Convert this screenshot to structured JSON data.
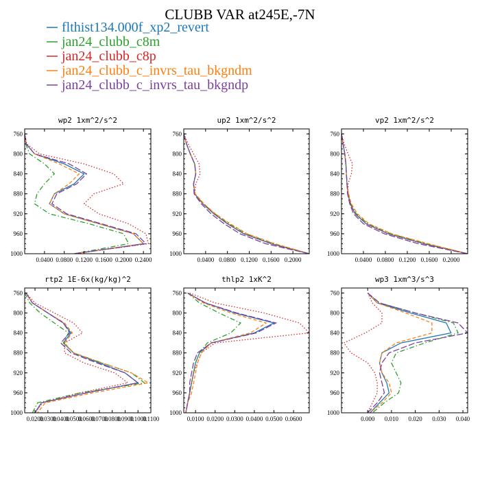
{
  "title": "CLUBB VAR at245E,-7N",
  "colors": {
    "flthist134.000f_xp2_revert": "#1f77b4",
    "jan24_clubb_c8m": "#2ca02c",
    "jan24_clubb_c8p": "#d62728",
    "jan24_clubb_c_invrs_tau_bkgndm": "#ff7f0e",
    "jan24_clubb_c_invrs_tau_bkgndp": "#7b3fa0"
  },
  "legend": [
    {
      "name": "flthist134.000f_xp2_revert",
      "color": "#1f77b4",
      "dash": "solid"
    },
    {
      "name": "jan24_clubb_c8m",
      "color": "#2ca02c",
      "dash": "dashdot"
    },
    {
      "name": "jan24_clubb_c8p",
      "color": "#d62728",
      "dash": "dotted"
    },
    {
      "name": "jan24_clubb_c_invrs_tau_bkgndm",
      "color": "#ff7f0e",
      "dash": "dashed"
    },
    {
      "name": "jan24_clubb_c_invrs_tau_bkgndp",
      "color": "#7b3fa0",
      "dash": "longdash"
    }
  ],
  "chart_data": [
    {
      "type": "line",
      "title": "wp2  1xm^2/s^2",
      "xlim": [
        0.0,
        0.255
      ],
      "ylim": [
        1000,
        750
      ],
      "xticks": [
        0.04,
        0.08,
        0.12,
        0.16,
        0.2,
        0.24
      ],
      "xtick_labels": [
        "0.0400",
        "0.0800",
        "0.1200",
        "0.1600",
        "0.2000",
        "0.2400"
      ],
      "yticks": [
        760,
        800,
        840,
        880,
        920,
        960,
        1000
      ],
      "y": [
        760,
        780,
        800,
        820,
        840,
        860,
        880,
        900,
        920,
        940,
        960,
        980,
        1000
      ],
      "series": [
        {
          "name": "flthist134.000f_xp2_revert",
          "x": [
            0.0,
            0.003,
            0.02,
            0.08,
            0.12,
            0.1,
            0.06,
            0.05,
            0.08,
            0.15,
            0.22,
            0.24,
            0.1
          ]
        },
        {
          "name": "jan24_clubb_c8m",
          "x": [
            0.0,
            0.002,
            0.01,
            0.04,
            0.06,
            0.04,
            0.025,
            0.02,
            0.05,
            0.13,
            0.2,
            0.21,
            0.1
          ]
        },
        {
          "name": "jan24_clubb_c8p",
          "x": [
            0.0,
            0.004,
            0.03,
            0.12,
            0.18,
            0.2,
            0.14,
            0.12,
            0.15,
            0.21,
            0.245,
            0.25,
            0.1
          ]
        },
        {
          "name": "jan24_clubb_c_invrs_tau_bkgndm",
          "x": [
            0.0,
            0.003,
            0.02,
            0.07,
            0.11,
            0.09,
            0.06,
            0.05,
            0.08,
            0.15,
            0.22,
            0.24,
            0.1
          ]
        },
        {
          "name": "jan24_clubb_c_invrs_tau_bkgndp",
          "x": [
            0.0,
            0.003,
            0.02,
            0.09,
            0.125,
            0.105,
            0.065,
            0.055,
            0.085,
            0.155,
            0.225,
            0.245,
            0.1
          ]
        }
      ]
    },
    {
      "type": "line",
      "title": "up2  1xm^2/s^2",
      "xlim": [
        0.0,
        0.23
      ],
      "ylim": [
        1000,
        750
      ],
      "xticks": [
        0.04,
        0.08,
        0.12,
        0.16,
        0.2
      ],
      "xtick_labels": [
        "0.0400",
        "0.0800",
        "0.1200",
        "0.1600",
        "0.2000"
      ],
      "yticks": [
        760,
        800,
        840,
        880,
        920,
        960,
        1000
      ],
      "y": [
        760,
        780,
        800,
        820,
        840,
        860,
        880,
        900,
        920,
        940,
        960,
        980,
        1000
      ],
      "series": [
        {
          "name": "flthist134.000f_xp2_revert",
          "x": [
            0.0,
            0.005,
            0.012,
            0.02,
            0.022,
            0.018,
            0.02,
            0.035,
            0.055,
            0.08,
            0.11,
            0.16,
            0.23
          ]
        },
        {
          "name": "jan24_clubb_c8m",
          "x": [
            0.0,
            0.005,
            0.012,
            0.02,
            0.022,
            0.018,
            0.02,
            0.036,
            0.057,
            0.083,
            0.114,
            0.165,
            0.23
          ]
        },
        {
          "name": "jan24_clubb_c8p",
          "x": [
            0.0,
            0.008,
            0.018,
            0.028,
            0.03,
            0.022,
            0.02,
            0.035,
            0.055,
            0.08,
            0.11,
            0.16,
            0.23
          ]
        },
        {
          "name": "jan24_clubb_c_invrs_tau_bkgndm",
          "x": [
            0.0,
            0.005,
            0.012,
            0.02,
            0.022,
            0.018,
            0.021,
            0.037,
            0.058,
            0.085,
            0.116,
            0.167,
            0.23
          ]
        },
        {
          "name": "jan24_clubb_c_invrs_tau_bkgndp",
          "x": [
            0.0,
            0.005,
            0.012,
            0.02,
            0.022,
            0.018,
            0.019,
            0.032,
            0.05,
            0.074,
            0.103,
            0.15,
            0.23
          ]
        }
      ]
    },
    {
      "type": "line",
      "title": "vp2  1xm^2/s^2",
      "xlim": [
        0.0,
        0.23
      ],
      "ylim": [
        1000,
        750
      ],
      "xticks": [
        0.04,
        0.08,
        0.12,
        0.16,
        0.2
      ],
      "xtick_labels": [
        "0.0400",
        "0.0800",
        "0.1200",
        "0.1600",
        "0.2000"
      ],
      "yticks": [
        760,
        800,
        840,
        880,
        920,
        960,
        1000
      ],
      "y": [
        760,
        780,
        800,
        820,
        840,
        860,
        880,
        900,
        920,
        940,
        960,
        980,
        1000
      ],
      "series": [
        {
          "name": "flthist134.000f_xp2_revert",
          "x": [
            0.0,
            0.003,
            0.006,
            0.008,
            0.009,
            0.01,
            0.012,
            0.016,
            0.025,
            0.045,
            0.085,
            0.15,
            0.23
          ]
        },
        {
          "name": "jan24_clubb_c8m",
          "x": [
            0.0,
            0.003,
            0.006,
            0.008,
            0.009,
            0.01,
            0.012,
            0.017,
            0.027,
            0.048,
            0.09,
            0.155,
            0.23
          ]
        },
        {
          "name": "jan24_clubb_c8p",
          "x": [
            0.0,
            0.005,
            0.012,
            0.02,
            0.018,
            0.012,
            0.012,
            0.016,
            0.025,
            0.045,
            0.085,
            0.15,
            0.23
          ]
        },
        {
          "name": "jan24_clubb_c_invrs_tau_bkgndm",
          "x": [
            0.0,
            0.003,
            0.006,
            0.008,
            0.009,
            0.01,
            0.013,
            0.018,
            0.029,
            0.05,
            0.092,
            0.158,
            0.23
          ]
        },
        {
          "name": "jan24_clubb_c_invrs_tau_bkgndp",
          "x": [
            0.0,
            0.003,
            0.006,
            0.008,
            0.009,
            0.01,
            0.011,
            0.015,
            0.022,
            0.04,
            0.078,
            0.14,
            0.23
          ]
        }
      ]
    },
    {
      "type": "line",
      "title": "rtp2  1E-6x(kg/kg)^2",
      "xlim": [
        0.012,
        0.11
      ],
      "ylim": [
        1000,
        750
      ],
      "xticks": [
        0.02,
        0.03,
        0.04,
        0.05,
        0.06,
        0.07,
        0.08,
        0.09,
        0.1,
        0.11
      ],
      "xtick_labels": [
        "0.0200",
        "0.0300",
        "0.0400",
        "0.0500",
        "0.0600",
        "0.0700",
        "0.0800",
        "0.0900",
        "0.1000",
        "0.1100"
      ],
      "yticks": [
        760,
        800,
        840,
        880,
        920,
        960,
        1000
      ],
      "y": [
        760,
        780,
        800,
        820,
        840,
        860,
        880,
        900,
        920,
        940,
        960,
        980,
        1000
      ],
      "series": [
        {
          "name": "flthist134.000f_xp2_revert",
          "x": [
            0.013,
            0.018,
            0.03,
            0.042,
            0.048,
            0.042,
            0.05,
            0.07,
            0.09,
            0.1,
            0.06,
            0.025,
            0.02
          ]
        },
        {
          "name": "jan24_clubb_c8m",
          "x": [
            0.012,
            0.016,
            0.024,
            0.035,
            0.046,
            0.042,
            0.05,
            0.072,
            0.095,
            0.105,
            0.055,
            0.022,
            0.018
          ]
        },
        {
          "name": "jan24_clubb_c8p",
          "x": [
            0.013,
            0.02,
            0.035,
            0.05,
            0.057,
            0.043,
            0.043,
            0.058,
            0.082,
            0.092,
            0.055,
            0.026,
            0.02
          ]
        },
        {
          "name": "jan24_clubb_c_invrs_tau_bkgndm",
          "x": [
            0.013,
            0.018,
            0.03,
            0.043,
            0.049,
            0.043,
            0.05,
            0.072,
            0.095,
            0.108,
            0.065,
            0.028,
            0.022
          ]
        },
        {
          "name": "jan24_clubb_c_invrs_tau_bkgndp",
          "x": [
            0.013,
            0.018,
            0.03,
            0.042,
            0.047,
            0.04,
            0.048,
            0.068,
            0.09,
            0.1,
            0.06,
            0.025,
            0.02
          ]
        }
      ]
    },
    {
      "type": "line",
      "title": "thlp2  1xK^2",
      "xlim": [
        0.004,
        0.068
      ],
      "ylim": [
        1000,
        750
      ],
      "xticks": [
        0.01,
        0.02,
        0.03,
        0.04,
        0.05,
        0.06
      ],
      "xtick_labels": [
        "0.0100",
        "0.0200",
        "0.0300",
        "0.0400",
        "0.0500",
        "0.0600"
      ],
      "yticks": [
        760,
        800,
        840,
        880,
        920,
        960,
        1000
      ],
      "y": [
        760,
        780,
        800,
        820,
        840,
        860,
        880,
        900,
        920,
        940,
        960,
        980,
        1000
      ],
      "series": [
        {
          "name": "flthist134.000f_xp2_revert",
          "x": [
            0.006,
            0.015,
            0.03,
            0.05,
            0.04,
            0.018,
            0.012,
            0.01,
            0.009,
            0.008,
            0.007,
            0.006,
            0.005
          ]
        },
        {
          "name": "jan24_clubb_c8m",
          "x": [
            0.006,
            0.012,
            0.022,
            0.033,
            0.028,
            0.016,
            0.012,
            0.01,
            0.009,
            0.008,
            0.007,
            0.006,
            0.005
          ]
        },
        {
          "name": "jan24_clubb_c8p",
          "x": [
            0.007,
            0.02,
            0.045,
            0.063,
            0.068,
            0.02,
            0.013,
            0.011,
            0.009,
            0.008,
            0.007,
            0.006,
            0.005
          ]
        },
        {
          "name": "jan24_clubb_c_invrs_tau_bkgndm",
          "x": [
            0.006,
            0.014,
            0.028,
            0.046,
            0.038,
            0.018,
            0.013,
            0.011,
            0.01,
            0.009,
            0.008,
            0.006,
            0.005
          ]
        },
        {
          "name": "jan24_clubb_c_invrs_tau_bkgndp",
          "x": [
            0.006,
            0.015,
            0.031,
            0.051,
            0.041,
            0.018,
            0.011,
            0.009,
            0.008,
            0.007,
            0.007,
            0.006,
            0.005
          ]
        }
      ]
    },
    {
      "type": "line",
      "title": "wp3  1xm^3/s^3",
      "xlim": [
        -0.011,
        0.042
      ],
      "ylim": [
        1000,
        750
      ],
      "xticks": [
        0.0,
        0.01,
        0.02,
        0.03,
        0.04
      ],
      "xtick_labels": [
        "0.000",
        "0.010",
        "0.020",
        "0.030",
        "0.040"
      ],
      "yticks": [
        760,
        800,
        840,
        880,
        920,
        960,
        1000
      ],
      "y": [
        760,
        780,
        800,
        820,
        840,
        860,
        880,
        900,
        920,
        940,
        960,
        980,
        1000
      ],
      "series": [
        {
          "name": "flthist134.000f_xp2_revert",
          "x": [
            0.0,
            0.004,
            0.018,
            0.033,
            0.035,
            0.014,
            0.006,
            0.005,
            0.006,
            0.008,
            0.009,
            0.005,
            0.001
          ]
        },
        {
          "name": "jan24_clubb_c8m",
          "x": [
            0.0,
            0.005,
            0.02,
            0.036,
            0.038,
            0.024,
            0.012,
            0.01,
            0.012,
            0.014,
            0.013,
            0.007,
            0.002
          ]
        },
        {
          "name": "jan24_clubb_c8p",
          "x": [
            0.0,
            0.002,
            0.006,
            0.006,
            -0.001,
            -0.01,
            -0.007,
            0.0,
            0.003,
            0.004,
            0.004,
            0.002,
            0.0
          ]
        },
        {
          "name": "jan24_clubb_c_invrs_tau_bkgndm",
          "x": [
            0.0,
            0.004,
            0.016,
            0.027,
            0.027,
            0.012,
            0.006,
            0.005,
            0.006,
            0.009,
            0.01,
            0.006,
            0.001
          ]
        },
        {
          "name": "jan24_clubb_c_invrs_tau_bkgndp",
          "x": [
            0.0,
            0.005,
            0.02,
            0.038,
            0.042,
            0.02,
            0.009,
            0.006,
            0.005,
            0.006,
            0.007,
            0.004,
            0.0
          ]
        }
      ]
    }
  ]
}
